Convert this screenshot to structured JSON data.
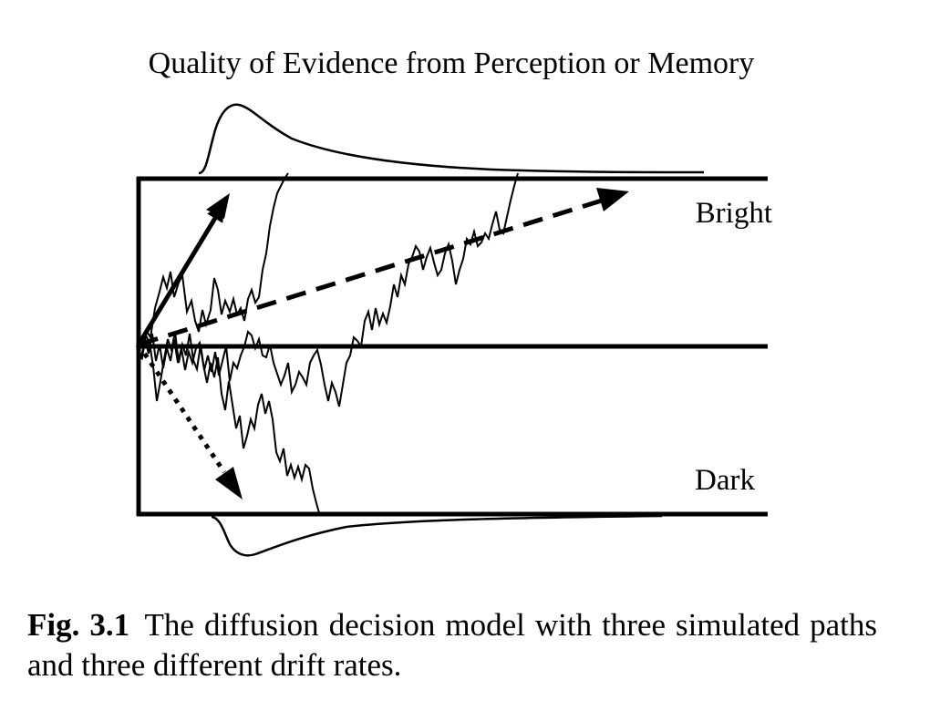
{
  "title": "Quality of Evidence from Perception or Memory",
  "boundary_labels": {
    "upper": "Bright",
    "lower": "Dark"
  },
  "caption": {
    "label": "Fig. 3.1",
    "text": "The diffusion decision model with three simulated paths and three different drift rates."
  },
  "drift_arrows": [
    {
      "name": "high-drift",
      "style": "solid",
      "direction": "up-steep"
    },
    {
      "name": "low-drift",
      "style": "dashed",
      "direction": "up-shallow"
    },
    {
      "name": "negative-drift",
      "style": "dotted",
      "direction": "down"
    }
  ],
  "simulated_paths": [
    {
      "name": "path-fast-upper",
      "outcome": "Bright"
    },
    {
      "name": "path-slow-upper",
      "outcome": "Bright"
    },
    {
      "name": "path-lower",
      "outcome": "Dark"
    }
  ],
  "distributions": [
    {
      "name": "upper-rt-distribution",
      "boundary": "upper"
    },
    {
      "name": "lower-rt-distribution",
      "boundary": "lower"
    }
  ],
  "colors": {
    "ink": "#000000",
    "background": "#ffffff"
  }
}
